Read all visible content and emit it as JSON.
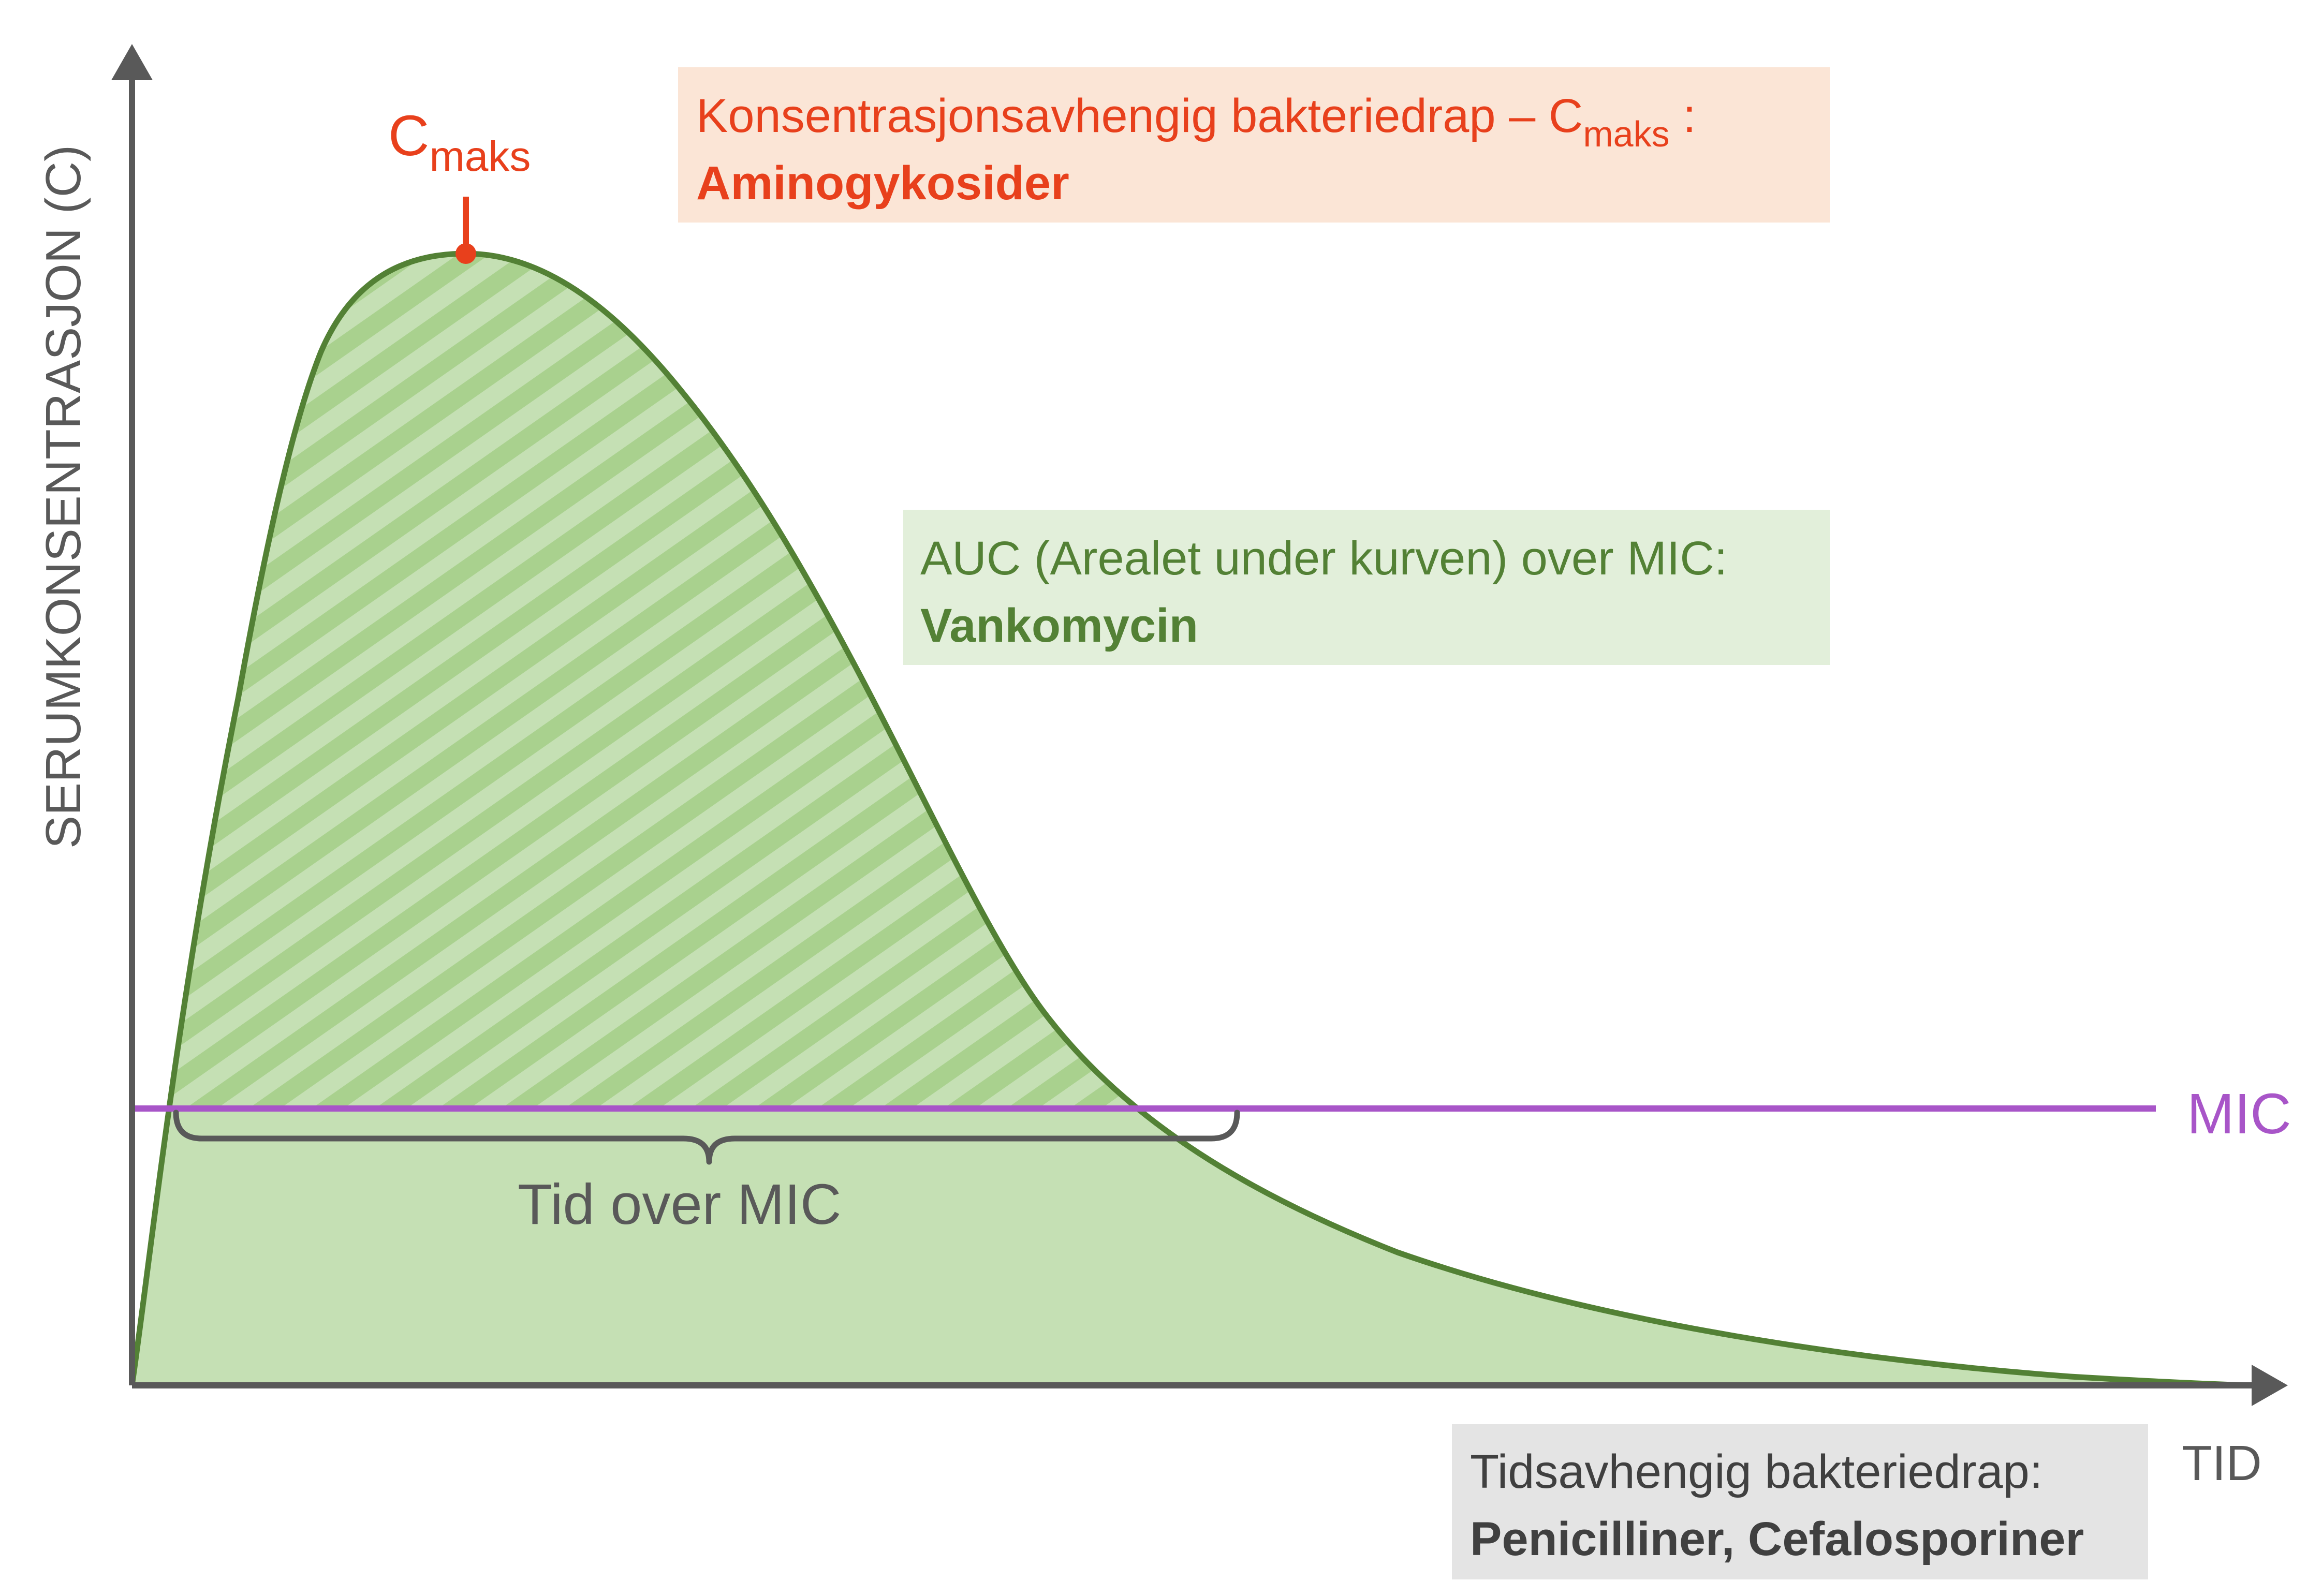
{
  "diagram": {
    "y_axis_label": "SERUMKONSENTRASJON (C)",
    "x_axis_label": "TID",
    "mic_label": "MIC",
    "cmax_label": {
      "base": "C",
      "subscript": "maks"
    },
    "time_over_mic_label": "Tid over MIC",
    "callouts": {
      "concentration": {
        "line1_prefix": "Konsentrasjonsavhengig bakteriedrap – C",
        "line1_subscript": "maks",
        "line1_suffix": " :",
        "line2": "Aminogykosider"
      },
      "auc": {
        "line1": "AUC (Arealet under kurven) over MIC:",
        "line2": "Vankomycin"
      },
      "time": {
        "line1": "Tidsavhengig bakteriedrap:",
        "line2": "Penicilliner, Cefalosporiner"
      }
    }
  },
  "colors": {
    "axis": "#595959",
    "curve": "#538135",
    "area_fill": "#c5e0b4",
    "hatch": "#a9d18e",
    "mic_line": "#a855c8",
    "cmax": "#e8401c",
    "concentration_box": "#fbe5d6",
    "auc_box": "#e2efda",
    "time_box": "#e4e4e4",
    "time_text": "#404040",
    "brace": "#595959"
  }
}
